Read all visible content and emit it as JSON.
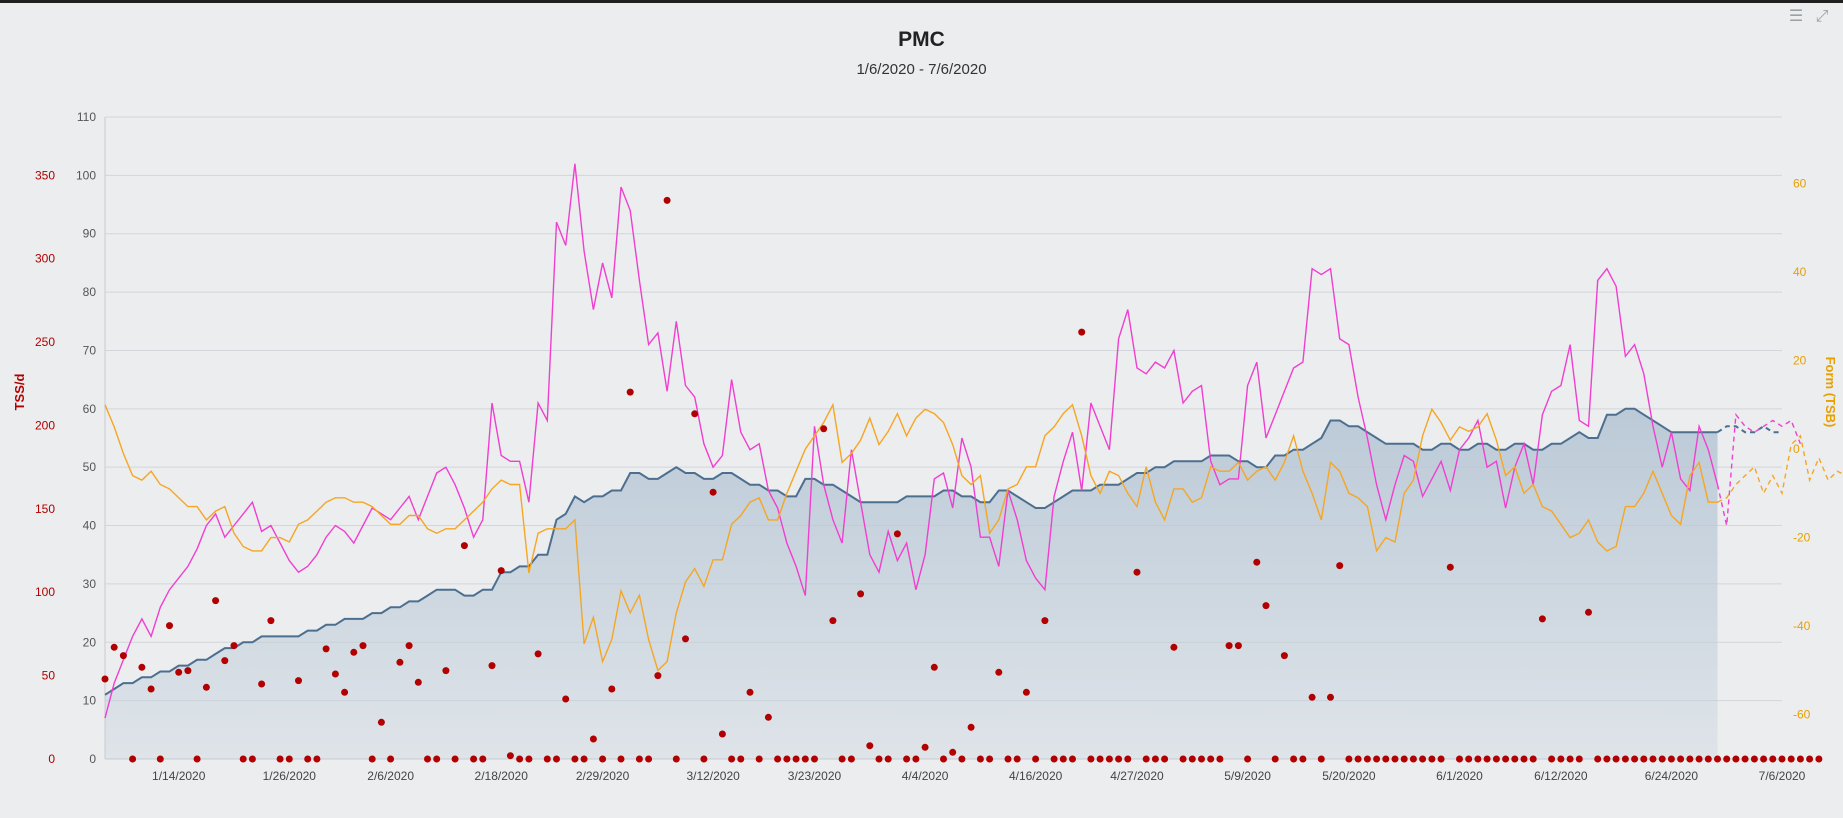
{
  "toolbar": {
    "menu_icon": "menu-icon",
    "collapse_icon": "collapse-icon"
  },
  "colors": {
    "background": "#ebedef",
    "ctl_line": "#4c6f8f",
    "ctl_fill": "#b9c8d6",
    "atl": "#f03fd0",
    "tsb": "#f5a623",
    "tss_dots": "#b20000",
    "tss_axis": "#b20000",
    "form_axis": "#e8a000",
    "grid": "#d3d6da"
  },
  "chart_data": {
    "type": "line",
    "title": "PMC",
    "subtitle": "1/6/2020 - 7/6/2020",
    "x_tick_labels": [
      "1/14/2020",
      "1/26/2020",
      "2/6/2020",
      "2/18/2020",
      "2/29/2020",
      "3/12/2020",
      "3/23/2020",
      "4/4/2020",
      "4/16/2020",
      "4/27/2020",
      "5/9/2020",
      "5/20/2020",
      "6/1/2020",
      "6/12/2020",
      "6/24/2020",
      "7/6/2020"
    ],
    "x_ticks_day_index": [
      8,
      20,
      31,
      43,
      54,
      66,
      77,
      89,
      101,
      112,
      124,
      135,
      147,
      158,
      170,
      182
    ],
    "x_range_day_index": [
      0,
      182
    ],
    "projection_start_day_index": 175,
    "axes": {
      "left_fitness": {
        "label": "",
        "ticks": [
          0,
          10,
          20,
          30,
          40,
          50,
          60,
          70,
          80,
          90,
          100,
          110
        ],
        "range": [
          0,
          110
        ]
      },
      "left_tss": {
        "label": "TSS/d",
        "ticks": [
          0,
          50,
          100,
          150,
          200,
          250,
          300,
          350
        ],
        "range": [
          0,
          385
        ]
      },
      "right_form": {
        "label": "Form (TSB)",
        "ticks": [
          -60,
          -40,
          -20,
          0,
          20,
          40,
          60
        ],
        "range": [
          -70,
          75
        ]
      }
    },
    "grid": true,
    "series": [
      {
        "type": "area",
        "axis": "left_fitness",
        "values": [
          11,
          12,
          13,
          13,
          14,
          14,
          15,
          15,
          16,
          16,
          17,
          17,
          18,
          19,
          19,
          20,
          20,
          21,
          21,
          21,
          21,
          21,
          22,
          22,
          23,
          23,
          24,
          24,
          24,
          25,
          25,
          26,
          26,
          27,
          27,
          28,
          29,
          29,
          29,
          28,
          28,
          29,
          29,
          32,
          32,
          33,
          33,
          35,
          35,
          41,
          42,
          45,
          44,
          45,
          45,
          46,
          46,
          49,
          49,
          48,
          48,
          49,
          50,
          49,
          49,
          48,
          48,
          49,
          49,
          48,
          47,
          47,
          46,
          46,
          45,
          45,
          48,
          48,
          47,
          47,
          46,
          45,
          44,
          44,
          44,
          44,
          44,
          45,
          45,
          45,
          45,
          46,
          46,
          45,
          45,
          44,
          44,
          46,
          46,
          45,
          44,
          43,
          43,
          44,
          45,
          46,
          46,
          46,
          47,
          47,
          47,
          48,
          49,
          49,
          50,
          50,
          51,
          51,
          51,
          51,
          52,
          52,
          52,
          51,
          51,
          50,
          50,
          52,
          52,
          53,
          53,
          54,
          55,
          58,
          58,
          57,
          57,
          56,
          55,
          54,
          54,
          54,
          54,
          53,
          53,
          54,
          54,
          53,
          53,
          54,
          54,
          53,
          53,
          54,
          54,
          53,
          53,
          54,
          54,
          55,
          56,
          55,
          55,
          59,
          59,
          60,
          60,
          59,
          58,
          57,
          56,
          56,
          56,
          56,
          56,
          56,
          57,
          57,
          56,
          56,
          57,
          56,
          56
        ]
      },
      {
        "type": "line",
        "axis": "left_fitness",
        "values": [
          7,
          13,
          17,
          21,
          24,
          21,
          26,
          29,
          31,
          33,
          36,
          40,
          42,
          38,
          40,
          42,
          44,
          39,
          40,
          37,
          34,
          32,
          33,
          35,
          38,
          40,
          39,
          37,
          40,
          43,
          42,
          41,
          43,
          45,
          41,
          45,
          49,
          50,
          47,
          43,
          38,
          41,
          61,
          52,
          51,
          51,
          44,
          61,
          58,
          92,
          88,
          102,
          87,
          77,
          85,
          79,
          98,
          94,
          82,
          71,
          73,
          63,
          75,
          64,
          62,
          54,
          50,
          52,
          65,
          56,
          53,
          54,
          46,
          43,
          37,
          33,
          28,
          57,
          47,
          41,
          37,
          53,
          44,
          35,
          32,
          39,
          34,
          37,
          29,
          35,
          48,
          49,
          43,
          55,
          50,
          38,
          38,
          33,
          46,
          41,
          34,
          31,
          29,
          45,
          51,
          56,
          46,
          61,
          57,
          53,
          72,
          77,
          67,
          66,
          68,
          67,
          70,
          61,
          63,
          64,
          51,
          47,
          48,
          48,
          64,
          68,
          55,
          59,
          63,
          67,
          68,
          84,
          83,
          84,
          72,
          71,
          62,
          55,
          47,
          41,
          47,
          52,
          51,
          45,
          48,
          51,
          46,
          53,
          55,
          58,
          50,
          51,
          43,
          50,
          54,
          47,
          59,
          63,
          64,
          71,
          58,
          57,
          82,
          84,
          81,
          69,
          71,
          66,
          57,
          50,
          56,
          48,
          46,
          57,
          53,
          47,
          40,
          59,
          57,
          56,
          57,
          58,
          57,
          58,
          54
        ]
      },
      {
        "type": "line",
        "axis": "right_form",
        "values": [
          10,
          5,
          -1,
          -6,
          -7,
          -5,
          -8,
          -9,
          -11,
          -13,
          -13,
          -16,
          -14,
          -13,
          -19,
          -22,
          -23,
          -23,
          -20,
          -20,
          -21,
          -17,
          -16,
          -14,
          -12,
          -11,
          -11,
          -12,
          -12,
          -13,
          -15,
          -17,
          -17,
          -15,
          -15,
          -18,
          -19,
          -18,
          -18,
          -16,
          -14,
          -12,
          -9,
          -7,
          -8,
          -8,
          -28,
          -19,
          -18,
          -18,
          -18,
          -16,
          -44,
          -38,
          -48,
          -43,
          -32,
          -37,
          -33,
          -43,
          -50,
          -48,
          -37,
          -30,
          -27,
          -31,
          -25,
          -25,
          -17,
          -15,
          -12,
          -11,
          -16,
          -16,
          -10,
          -5,
          0,
          3,
          6,
          10,
          -3,
          -1,
          2,
          7,
          1,
          4,
          8,
          3,
          7,
          9,
          8,
          6,
          1,
          -6,
          -8,
          -6,
          -19,
          -16,
          -9,
          -8,
          -4,
          -4,
          3,
          5,
          8,
          10,
          3,
          -6,
          -10,
          -5,
          -6,
          -10,
          -13,
          -4,
          -12,
          -16,
          -9,
          -9,
          -12,
          -11,
          -4,
          -5,
          -5,
          -3,
          -7,
          -5,
          -4,
          -7,
          -3,
          3,
          -5,
          -10,
          -16,
          -3,
          -5,
          -10,
          -11,
          -13,
          -23,
          -20,
          -21,
          -10,
          -7,
          3,
          9,
          6,
          2,
          5,
          4,
          5,
          8,
          2,
          -6,
          -4,
          -10,
          -8,
          -13,
          -14,
          -17,
          -20,
          -19,
          -16,
          -21,
          -23,
          -22,
          -13,
          -13,
          -10,
          -5,
          -10,
          -15,
          -17,
          -6,
          -3,
          -12,
          -12,
          -11,
          -8,
          -6,
          -4,
          -10,
          -6,
          -10,
          1,
          3,
          -7,
          -2,
          -7,
          -5,
          -6,
          -1,
          -13,
          8,
          -3,
          -7,
          -10,
          -9
        ]
      },
      {
        "type": "scatter",
        "axis": "left_tss",
        "values": [
          48,
          67,
          62,
          0,
          55,
          42,
          0,
          80,
          52,
          53,
          0,
          43,
          95,
          59,
          68,
          0,
          0,
          45,
          83,
          0,
          0,
          47,
          0,
          0,
          66,
          51,
          40,
          64,
          68,
          0,
          22,
          0,
          58,
          68,
          46,
          0,
          0,
          53,
          0,
          128,
          0,
          0,
          56,
          113,
          2,
          0,
          0,
          63,
          0,
          0,
          36,
          0,
          0,
          12,
          0,
          42,
          0,
          220,
          0,
          0,
          50,
          335,
          0,
          72,
          207,
          0,
          160,
          15,
          0,
          0,
          40,
          0,
          25,
          0,
          0,
          0,
          0,
          0,
          198,
          83,
          0,
          0,
          99,
          8,
          0,
          0,
          135,
          0,
          0,
          7,
          55,
          0,
          4,
          0,
          19,
          0,
          0,
          52,
          0,
          0,
          40,
          0,
          83,
          0,
          0,
          0,
          256,
          0,
          0,
          0,
          0,
          0,
          112,
          0,
          0,
          0,
          67,
          0,
          0,
          0,
          0,
          0,
          68,
          68,
          0,
          118,
          92,
          0,
          62,
          0,
          0,
          37,
          0,
          37,
          116,
          0,
          0,
          0,
          0,
          0,
          0,
          0,
          0,
          0,
          0,
          0,
          115,
          0,
          0,
          0,
          0,
          0,
          0,
          0,
          0,
          0,
          84,
          0,
          0,
          0,
          0,
          88,
          0,
          0,
          0,
          0,
          0,
          0,
          0,
          0,
          0,
          0,
          0,
          0,
          0,
          0,
          0,
          0,
          0,
          0,
          0,
          0,
          0,
          0,
          0,
          0,
          0
        ]
      }
    ]
  }
}
